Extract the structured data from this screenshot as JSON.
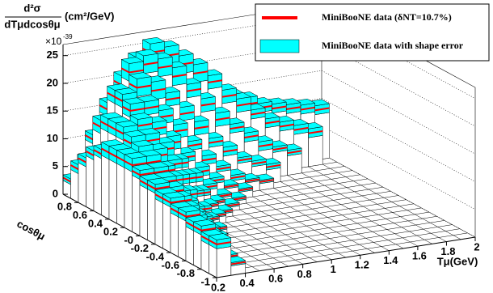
{
  "chart_data": {
    "type": "lego3d",
    "zlabel": {
      "numerator": "d²σ",
      "denominator": "dTμdcosθμ",
      "unit": "(cm²/GeV)"
    },
    "zmultiplier": {
      "base": "×10",
      "exponent": "-39"
    },
    "xlabel": "Tμ(GeV)",
    "ylabel": "cosθμ",
    "series": [
      {
        "name": "MiniBooNE data (δNT=10.7%)",
        "color": "#ff0000"
      },
      {
        "name": "MiniBooNE data with shape error",
        "color": "#00ffff"
      }
    ],
    "xbins": [
      0.2,
      0.3,
      0.4,
      0.5,
      0.6,
      0.7,
      0.8,
      0.9,
      1.0,
      1.1,
      1.2,
      1.3,
      1.4,
      1.5,
      1.6,
      1.7,
      1.8,
      1.9,
      2.0
    ],
    "ybins": [
      -1,
      -0.9,
      -0.8,
      -0.7,
      -0.6,
      -0.5,
      -0.4,
      -0.3,
      -0.2,
      -0.1,
      0,
      0.1,
      0.2,
      0.3,
      0.4,
      0.5,
      0.6,
      0.7,
      0.8,
      0.9,
      1
    ],
    "values": [
      [
        6,
        2,
        null,
        null,
        null,
        null,
        null,
        null,
        null,
        null,
        null,
        null,
        null,
        null,
        null,
        null,
        null,
        null
      ],
      [
        6,
        2.5,
        null,
        null,
        null,
        null,
        null,
        null,
        null,
        null,
        null,
        null,
        null,
        null,
        null,
        null,
        null,
        null
      ],
      [
        7,
        3,
        null,
        null,
        null,
        null,
        null,
        null,
        null,
        null,
        null,
        null,
        null,
        null,
        null,
        null,
        null,
        null
      ],
      [
        7,
        4,
        null,
        null,
        null,
        null,
        null,
        null,
        null,
        null,
        null,
        null,
        null,
        null,
        null,
        null,
        null,
        null
      ],
      [
        8,
        5,
        2,
        null,
        null,
        null,
        null,
        null,
        null,
        null,
        null,
        null,
        null,
        null,
        null,
        null,
        null,
        null
      ],
      [
        8,
        6,
        3,
        null,
        null,
        null,
        null,
        null,
        null,
        null,
        null,
        null,
        null,
        null,
        null,
        null,
        null,
        null
      ],
      [
        9,
        7,
        4,
        1.5,
        null,
        null,
        null,
        null,
        null,
        null,
        null,
        null,
        null,
        null,
        null,
        null,
        null,
        null
      ],
      [
        9,
        8,
        5,
        2,
        null,
        null,
        null,
        null,
        null,
        null,
        null,
        null,
        null,
        null,
        null,
        null,
        null,
        null
      ],
      [
        10,
        9,
        6,
        3,
        1,
        null,
        null,
        null,
        null,
        null,
        null,
        null,
        null,
        null,
        null,
        null,
        null,
        null
      ],
      [
        10,
        10,
        7,
        4,
        2,
        null,
        null,
        null,
        null,
        null,
        null,
        null,
        null,
        null,
        null,
        null,
        null,
        null
      ],
      [
        11,
        11,
        9,
        6,
        3,
        1.5,
        null,
        null,
        null,
        null,
        null,
        null,
        null,
        null,
        null,
        null,
        null,
        null
      ],
      [
        12,
        12,
        10,
        8,
        5,
        2.5,
        1,
        null,
        null,
        null,
        null,
        null,
        null,
        null,
        null,
        null,
        null,
        null
      ],
      [
        12,
        13,
        12,
        10,
        7,
        4,
        2,
        1,
        null,
        null,
        null,
        null,
        null,
        null,
        null,
        null,
        null,
        null
      ],
      [
        12,
        14,
        14,
        12,
        9,
        6,
        4,
        2,
        1,
        null,
        null,
        null,
        null,
        null,
        null,
        null,
        null,
        null
      ],
      [
        12,
        15,
        16,
        15,
        12,
        9,
        6,
        4,
        2.5,
        1.5,
        null,
        null,
        null,
        null,
        null,
        null,
        null,
        null
      ],
      [
        11,
        15,
        18,
        18,
        16,
        13,
        10,
        7,
        5,
        3,
        2,
        1.5,
        null,
        null,
        null,
        null,
        null,
        null
      ],
      [
        10,
        15,
        19,
        21,
        20,
        18,
        15,
        12,
        9,
        7,
        5,
        4,
        3,
        null,
        null,
        null,
        null,
        null
      ],
      [
        8,
        14,
        19,
        23,
        24,
        23,
        21,
        18,
        15,
        12,
        10,
        8,
        6,
        5,
        4,
        null,
        null,
        null
      ],
      [
        6,
        11,
        16,
        20,
        23,
        25,
        24,
        22,
        20,
        18,
        15,
        13,
        11,
        9,
        8,
        7,
        6,
        null
      ],
      [
        3,
        6,
        9,
        12,
        14,
        16,
        17,
        17,
        16,
        15,
        14,
        13,
        12,
        11,
        10.5,
        10,
        9.5,
        9
      ]
    ],
    "errors": [
      [
        0.8,
        0.3,
        null,
        null,
        null,
        null,
        null,
        null,
        null,
        null,
        null,
        null,
        null,
        null,
        null,
        null,
        null,
        null
      ],
      [
        0.8,
        0.3,
        null,
        null,
        null,
        null,
        null,
        null,
        null,
        null,
        null,
        null,
        null,
        null,
        null,
        null,
        null,
        null
      ],
      [
        0.8,
        0.5,
        null,
        null,
        null,
        null,
        null,
        null,
        null,
        null,
        null,
        null,
        null,
        null,
        null,
        null,
        null,
        null
      ],
      [
        0.8,
        0.5,
        null,
        null,
        null,
        null,
        null,
        null,
        null,
        null,
        null,
        null,
        null,
        null,
        null,
        null,
        null,
        null
      ],
      [
        0.8,
        0.5,
        0.3,
        null,
        null,
        null,
        null,
        null,
        null,
        null,
        null,
        null,
        null,
        null,
        null,
        null,
        null,
        null
      ],
      [
        0.8,
        0.8,
        0.5,
        null,
        null,
        null,
        null,
        null,
        null,
        null,
        null,
        null,
        null,
        null,
        null,
        null,
        null,
        null
      ],
      [
        0.8,
        0.8,
        0.5,
        0.3,
        null,
        null,
        null,
        null,
        null,
        null,
        null,
        null,
        null,
        null,
        null,
        null,
        null,
        null
      ],
      [
        0.8,
        0.8,
        0.5,
        0.3,
        null,
        null,
        null,
        null,
        null,
        null,
        null,
        null,
        null,
        null,
        null,
        null,
        null,
        null
      ],
      [
        0.8,
        0.8,
        0.8,
        0.5,
        0.3,
        null,
        null,
        null,
        null,
        null,
        null,
        null,
        null,
        null,
        null,
        null,
        null,
        null
      ],
      [
        0.8,
        0.8,
        0.8,
        0.5,
        0.3,
        null,
        null,
        null,
        null,
        null,
        null,
        null,
        null,
        null,
        null,
        null,
        null,
        null
      ],
      [
        0.8,
        0.8,
        0.8,
        0.8,
        0.5,
        0.3,
        null,
        null,
        null,
        null,
        null,
        null,
        null,
        null,
        null,
        null,
        null,
        null
      ],
      [
        1.2,
        1.2,
        0.8,
        0.8,
        0.5,
        0.3,
        0.3,
        null,
        null,
        null,
        null,
        null,
        null,
        null,
        null,
        null,
        null,
        null
      ],
      [
        1.2,
        1.2,
        1.2,
        0.8,
        0.8,
        0.5,
        0.3,
        0.3,
        null,
        null,
        null,
        null,
        null,
        null,
        null,
        null,
        null,
        null
      ],
      [
        1.2,
        1.2,
        1.2,
        1.2,
        0.8,
        0.8,
        0.5,
        0.3,
        0.3,
        null,
        null,
        null,
        null,
        null,
        null,
        null,
        null,
        null
      ],
      [
        1.2,
        1.2,
        1.2,
        1.2,
        1.2,
        0.8,
        0.8,
        0.5,
        0.3,
        0.3,
        null,
        null,
        null,
        null,
        null,
        null,
        null,
        null
      ],
      [
        0.8,
        1.2,
        1.2,
        1.2,
        1.2,
        1.2,
        0.8,
        0.8,
        0.5,
        0.5,
        0.3,
        0.3,
        null,
        null,
        null,
        null,
        null,
        null
      ],
      [
        0.8,
        1.2,
        1.2,
        1.6,
        1.6,
        1.2,
        1.2,
        1.2,
        0.8,
        0.8,
        0.5,
        0.5,
        0.5,
        null,
        null,
        null,
        null,
        null
      ],
      [
        0.8,
        1.2,
        1.2,
        1.6,
        1.6,
        1.6,
        1.6,
        1.2,
        1.2,
        1.2,
        0.8,
        0.8,
        0.8,
        0.5,
        0.5,
        null,
        null,
        null
      ],
      [
        0.8,
        0.8,
        1.2,
        1.6,
        1.6,
        1.6,
        1.6,
        1.6,
        1.6,
        1.2,
        1.2,
        1.2,
        0.8,
        0.8,
        0.8,
        0.8,
        0.8,
        null
      ],
      [
        0.5,
        0.8,
        0.8,
        1.2,
        1.2,
        1.2,
        1.2,
        1.2,
        1.2,
        1.2,
        1.2,
        1.2,
        1.2,
        0.8,
        0.8,
        0.8,
        0.8,
        0.8
      ]
    ],
    "xlim": [
      0.2,
      2
    ],
    "ylim": [
      -1,
      1
    ],
    "zlim": [
      0,
      27
    ],
    "xticks": [
      0.2,
      0.4,
      0.6,
      0.8,
      1,
      1.2,
      1.4,
      1.6,
      1.8,
      2
    ],
    "yticks": [
      -1,
      -0.8,
      -0.6,
      -0.4,
      -0.2,
      {
        "value": 0,
        "label": "-0"
      },
      0.2,
      0.4,
      0.6,
      0.8
    ],
    "zticks": [
      0,
      5,
      10,
      15,
      20,
      25
    ],
    "grid": true
  }
}
